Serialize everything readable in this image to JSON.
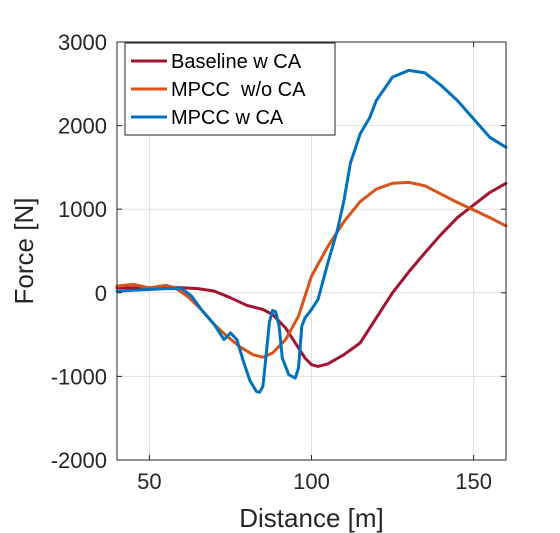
{
  "chart_data": {
    "type": "line",
    "title": "",
    "xlabel": "Distance [m]",
    "ylabel": "Force [N]",
    "xlim": [
      40,
      160
    ],
    "ylim": [
      -2000,
      3000
    ],
    "xticks": [
      50,
      100,
      150
    ],
    "yticks": [
      -2000,
      -1000,
      0,
      1000,
      2000,
      3000
    ],
    "grid": true,
    "legend_position": "top-left",
    "series": [
      {
        "name": "Baseline w CA",
        "color": "#A2142F",
        "x": [
          40,
          45,
          50,
          55,
          60,
          65,
          70,
          75,
          80,
          85,
          88,
          92,
          95,
          98,
          100,
          102,
          105,
          110,
          115,
          120,
          125,
          130,
          135,
          140,
          145,
          150,
          155,
          160
        ],
        "y": [
          60,
          60,
          60,
          60,
          60,
          50,
          20,
          -60,
          -150,
          -200,
          -260,
          -420,
          -600,
          -780,
          -860,
          -880,
          -850,
          -740,
          -600,
          -300,
          0,
          250,
          480,
          700,
          900,
          1050,
          1200,
          1310
        ]
      },
      {
        "name": "MPCC  w/o CA",
        "color": "#D95319",
        "x": [
          40,
          45,
          50,
          55,
          58,
          62,
          66,
          70,
          74,
          78,
          82,
          85,
          88,
          92,
          96,
          100,
          105,
          110,
          115,
          120,
          125,
          130,
          135,
          140,
          145,
          150,
          155,
          160
        ],
        "y": [
          80,
          100,
          60,
          90,
          60,
          -50,
          -200,
          -380,
          -520,
          -650,
          -740,
          -770,
          -720,
          -560,
          -280,
          200,
          550,
          850,
          1090,
          1240,
          1310,
          1320,
          1280,
          1180,
          1080,
          990,
          900,
          800
        ]
      },
      {
        "name": "MPCC w CA",
        "color": "#0072BD",
        "x": [
          40,
          45,
          50,
          55,
          60,
          63,
          66,
          70,
          73,
          75,
          77,
          79,
          81,
          83,
          84,
          85,
          86,
          87,
          88,
          89,
          90,
          91,
          93,
          95,
          96,
          97,
          98,
          100,
          102,
          105,
          108,
          110,
          112,
          115,
          118,
          120,
          125,
          130,
          135,
          140,
          145,
          150,
          155,
          160
        ],
        "y": [
          20,
          30,
          40,
          50,
          50,
          -40,
          -200,
          -380,
          -560,
          -480,
          -560,
          -820,
          -1050,
          -1180,
          -1190,
          -1120,
          -750,
          -350,
          -210,
          -230,
          -400,
          -780,
          -980,
          -1020,
          -900,
          -400,
          -300,
          -200,
          -80,
          350,
          750,
          1100,
          1550,
          1900,
          2100,
          2300,
          2580,
          2660,
          2630,
          2480,
          2300,
          2080,
          1860,
          1740
        ]
      }
    ]
  }
}
